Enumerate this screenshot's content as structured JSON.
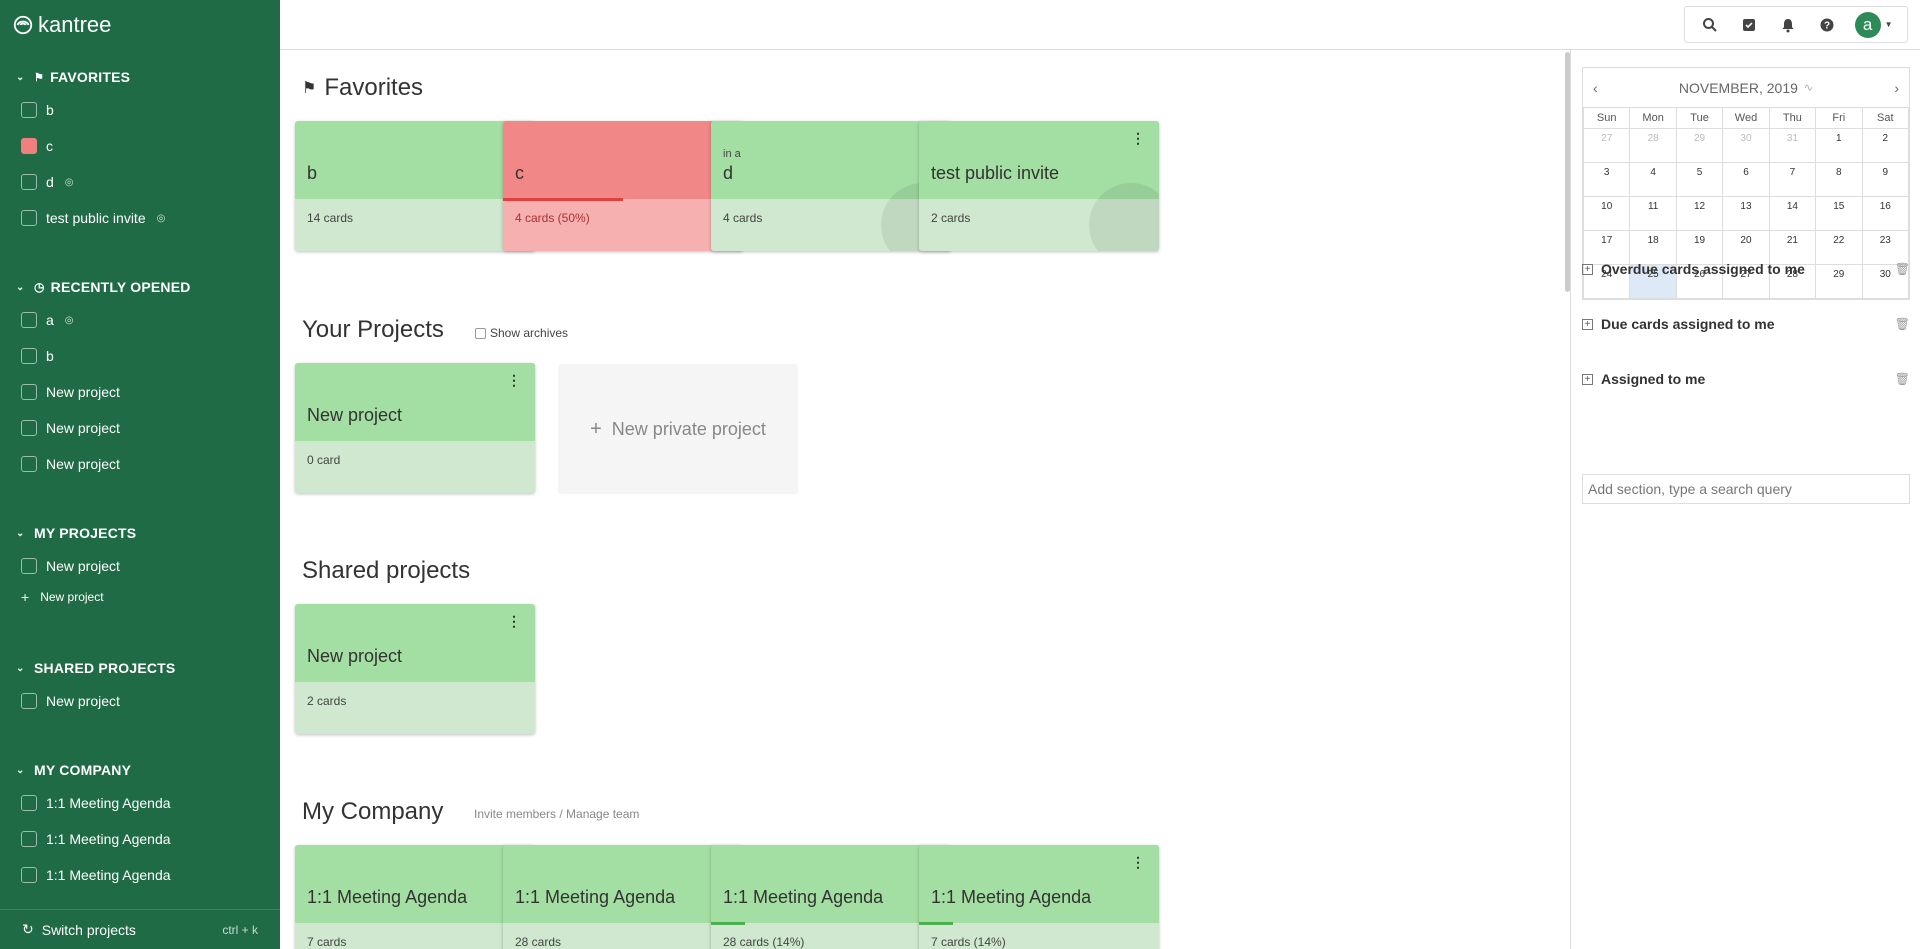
{
  "app": {
    "name": "kantree"
  },
  "sidebar": {
    "favorites": {
      "label": "FAVORITES",
      "items": [
        {
          "label": "b",
          "color": "",
          "public": false
        },
        {
          "label": "c",
          "color": "#f08080",
          "public": false
        },
        {
          "label": "d",
          "color": "",
          "public": true
        },
        {
          "label": "test public invite",
          "color": "",
          "public": true
        }
      ]
    },
    "recent": {
      "label": "RECENTLY OPENED",
      "items": [
        {
          "label": "a",
          "public": true
        },
        {
          "label": "b",
          "public": false
        },
        {
          "label": "New project",
          "public": false
        },
        {
          "label": "New project",
          "public": false
        },
        {
          "label": "New project",
          "public": false
        }
      ]
    },
    "my_projects": {
      "label": "MY PROJECTS",
      "items": [
        {
          "label": "New project"
        }
      ],
      "new_label": "New project"
    },
    "shared": {
      "label": "SHARED PROJECTS",
      "items": [
        {
          "label": "New project"
        }
      ]
    },
    "company": {
      "label": "MY COMPANY",
      "items": [
        {
          "label": "1:1 Meeting Agenda"
        },
        {
          "label": "1:1 Meeting Agenda"
        },
        {
          "label": "1:1 Meeting Agenda"
        }
      ]
    },
    "switch": {
      "label": "Switch projects",
      "shortcut": "ctrl + k"
    }
  },
  "topbar": {
    "avatar_letter": "a",
    "icons": [
      "search-icon",
      "checkbox-icon",
      "bell-icon",
      "help-icon"
    ]
  },
  "main": {
    "favorites": {
      "title": "Favorites",
      "cards": [
        {
          "name": "b",
          "sub": "",
          "count": "14 cards",
          "color": "green",
          "globe": false,
          "progress": 0
        },
        {
          "name": "c",
          "sub": "",
          "count": "4 cards (50%)",
          "color": "red",
          "globe": false,
          "progress": 50
        },
        {
          "name": "d",
          "sub": "in a",
          "count": "4 cards",
          "color": "green",
          "globe": true,
          "progress": 0
        },
        {
          "name": "test public invite",
          "sub": "",
          "count": "2 cards",
          "color": "green",
          "globe": true,
          "progress": 0
        }
      ]
    },
    "your_projects": {
      "title": "Your Projects",
      "show_archives": "Show archives",
      "cards": [
        {
          "name": "New project",
          "count": "0 card"
        }
      ],
      "new_private": "New private project"
    },
    "shared_projects": {
      "title": "Shared projects",
      "cards": [
        {
          "name": "New project",
          "count": "2 cards"
        }
      ]
    },
    "my_company": {
      "title": "My Company",
      "manage": "Invite members / Manage team",
      "cards": [
        {
          "name": "1:1 Meeting Agenda",
          "count": "7 cards",
          "progress": 0
        },
        {
          "name": "1:1 Meeting Agenda",
          "count": "28 cards",
          "progress": 0
        },
        {
          "name": "1:1 Meeting Agenda",
          "count": "28 cards (14%)",
          "progress": 14
        },
        {
          "name": "1:1 Meeting Agenda",
          "count": "7 cards (14%)",
          "progress": 14
        }
      ]
    }
  },
  "calendar": {
    "month": "NOVEMBER, 2019",
    "days": [
      "Sun",
      "Mon",
      "Tue",
      "Wed",
      "Thu",
      "Fri",
      "Sat"
    ],
    "weeks": [
      [
        "27",
        "28",
        "29",
        "30",
        "31",
        "1",
        "2"
      ],
      [
        "3",
        "4",
        "5",
        "6",
        "7",
        "8",
        "9"
      ],
      [
        "10",
        "11",
        "12",
        "13",
        "14",
        "15",
        "16"
      ],
      [
        "17",
        "18",
        "19",
        "20",
        "21",
        "22",
        "23"
      ],
      [
        "24",
        "25",
        "26",
        "27",
        "28",
        "29",
        "30"
      ]
    ],
    "today": "25"
  },
  "sections": [
    {
      "label": "Overdue cards assigned to me"
    },
    {
      "label": "Due cards assigned to me"
    },
    {
      "label": "Assigned to me"
    }
  ],
  "add_section": {
    "placeholder": "Add section, type a search query"
  }
}
